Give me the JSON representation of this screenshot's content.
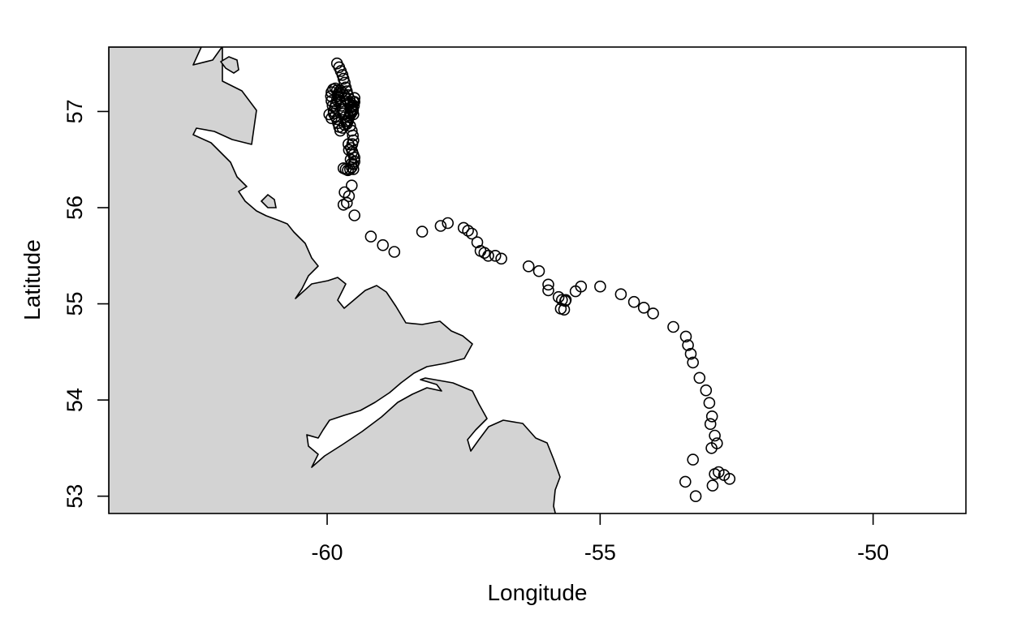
{
  "chart_data": {
    "type": "scatter",
    "title": "",
    "xlabel": "Longitude",
    "ylabel": "Latitude",
    "xlim": [
      -64,
      -48.3
    ],
    "ylim": [
      52.82,
      57.67
    ],
    "x_ticks": [
      -60,
      -55,
      -50
    ],
    "y_ticks": [
      53,
      54,
      55,
      56,
      57
    ],
    "grid": false,
    "legend": "none",
    "land_color": "#d3d3d3",
    "point_style": "open-circle",
    "points": [
      [
        -59.82,
        57.5
      ],
      [
        -59.78,
        57.46
      ],
      [
        -59.75,
        57.42
      ],
      [
        -59.72,
        57.38
      ],
      [
        -59.7,
        57.34
      ],
      [
        -59.68,
        57.3
      ],
      [
        -59.66,
        57.25
      ],
      [
        -59.64,
        57.21
      ],
      [
        -59.62,
        57.17
      ],
      [
        -59.59,
        57.13
      ],
      [
        -59.57,
        57.09
      ],
      [
        -59.55,
        57.05
      ],
      [
        -59.53,
        57.01
      ],
      [
        -59.52,
        56.97
      ],
      [
        -59.54,
        57.0
      ],
      [
        -59.57,
        57.04
      ],
      [
        -59.61,
        57.09
      ],
      [
        -59.65,
        57.13
      ],
      [
        -59.69,
        57.17
      ],
      [
        -59.73,
        57.2
      ],
      [
        -59.76,
        57.22
      ],
      [
        -59.78,
        57.2
      ],
      [
        -59.8,
        57.16
      ],
      [
        -59.82,
        57.12
      ],
      [
        -59.84,
        57.08
      ],
      [
        -59.86,
        57.04
      ],
      [
        -59.88,
        57.0
      ],
      [
        -59.9,
        57.06
      ],
      [
        -59.92,
        57.11
      ],
      [
        -59.93,
        57.16
      ],
      [
        -59.92,
        57.2
      ],
      [
        -59.89,
        57.23
      ],
      [
        -59.85,
        57.24
      ],
      [
        -59.82,
        57.22
      ],
      [
        -59.8,
        57.18
      ],
      [
        -59.78,
        57.14
      ],
      [
        -59.76,
        57.1
      ],
      [
        -59.74,
        57.06
      ],
      [
        -59.72,
        57.02
      ],
      [
        -59.7,
        56.98
      ],
      [
        -59.68,
        56.94
      ],
      [
        -59.66,
        56.9
      ],
      [
        -59.64,
        56.87
      ],
      [
        -59.62,
        56.9
      ],
      [
        -59.6,
        56.94
      ],
      [
        -59.58,
        56.98
      ],
      [
        -59.56,
        57.02
      ],
      [
        -59.54,
        57.06
      ],
      [
        -59.52,
        57.1
      ],
      [
        -59.5,
        57.14
      ],
      [
        -59.5,
        57.1
      ],
      [
        -59.51,
        57.06
      ],
      [
        -59.53,
        57.02
      ],
      [
        -59.56,
        56.98
      ],
      [
        -59.6,
        56.94
      ],
      [
        -59.64,
        56.9
      ],
      [
        -59.68,
        56.86
      ],
      [
        -59.72,
        56.83
      ],
      [
        -59.76,
        56.8
      ],
      [
        -59.78,
        56.84
      ],
      [
        -59.8,
        56.88
      ],
      [
        -59.82,
        56.92
      ],
      [
        -59.85,
        56.95
      ],
      [
        -59.88,
        56.98
      ],
      [
        -59.96,
        56.97
      ],
      [
        -59.92,
        56.93
      ],
      [
        -59.58,
        56.85
      ],
      [
        -59.55,
        56.8
      ],
      [
        -59.53,
        56.75
      ],
      [
        -59.52,
        56.7
      ],
      [
        -59.54,
        56.66
      ],
      [
        -59.56,
        56.62
      ],
      [
        -59.54,
        56.58
      ],
      [
        -59.52,
        56.55
      ],
      [
        -59.5,
        56.52
      ],
      [
        -59.5,
        56.48
      ],
      [
        -59.52,
        56.45
      ],
      [
        -59.55,
        56.42
      ],
      [
        -59.58,
        56.4
      ],
      [
        -59.62,
        56.39
      ],
      [
        -59.66,
        56.4
      ],
      [
        -59.7,
        56.41
      ],
      [
        -59.61,
        56.66
      ],
      [
        -59.6,
        56.6
      ],
      [
        -59.57,
        56.5
      ],
      [
        -59.55,
        56.46
      ],
      [
        -59.52,
        56.4
      ],
      [
        -59.55,
        56.23
      ],
      [
        -59.68,
        56.16
      ],
      [
        -59.6,
        56.12
      ],
      [
        -59.7,
        56.03
      ],
      [
        -59.64,
        56.05
      ],
      [
        -59.5,
        55.92
      ],
      [
        -59.2,
        55.7
      ],
      [
        -58.98,
        55.61
      ],
      [
        -58.77,
        55.54
      ],
      [
        -58.26,
        55.75
      ],
      [
        -57.92,
        55.81
      ],
      [
        -57.79,
        55.84
      ],
      [
        -57.5,
        55.79
      ],
      [
        -57.42,
        55.76
      ],
      [
        -57.35,
        55.73
      ],
      [
        -57.25,
        55.64
      ],
      [
        -57.19,
        55.55
      ],
      [
        -57.12,
        55.53
      ],
      [
        -57.05,
        55.5
      ],
      [
        -56.92,
        55.5
      ],
      [
        -56.81,
        55.47
      ],
      [
        -56.31,
        55.39
      ],
      [
        -56.12,
        55.34
      ],
      [
        -55.95,
        55.2
      ],
      [
        -55.95,
        55.14
      ],
      [
        -55.76,
        55.07
      ],
      [
        -55.7,
        55.04
      ],
      [
        -55.64,
        55.03
      ],
      [
        -55.72,
        54.95
      ],
      [
        -55.66,
        54.94
      ],
      [
        -55.63,
        55.04
      ],
      [
        -55.45,
        55.13
      ],
      [
        -55.35,
        55.18
      ],
      [
        -55.0,
        55.18
      ],
      [
        -54.62,
        55.1
      ],
      [
        -54.38,
        55.02
      ],
      [
        -54.2,
        54.96
      ],
      [
        -54.03,
        54.9
      ],
      [
        -53.66,
        54.76
      ],
      [
        -53.43,
        54.66
      ],
      [
        -53.39,
        54.57
      ],
      [
        -53.34,
        54.48
      ],
      [
        -53.3,
        54.39
      ],
      [
        -53.18,
        54.23
      ],
      [
        -53.06,
        54.1
      ],
      [
        -53.0,
        53.97
      ],
      [
        -52.95,
        53.83
      ],
      [
        -52.98,
        53.75
      ],
      [
        -52.9,
        53.63
      ],
      [
        -52.86,
        53.55
      ],
      [
        -52.96,
        53.5
      ],
      [
        -52.9,
        53.23
      ],
      [
        -52.83,
        53.25
      ],
      [
        -52.73,
        53.22
      ],
      [
        -52.63,
        53.18
      ],
      [
        -52.94,
        53.11
      ],
      [
        -53.3,
        53.38
      ],
      [
        -53.44,
        53.15
      ],
      [
        -53.25,
        53.0
      ]
    ],
    "x_tick_labels": [
      "-60",
      "-55",
      "-50"
    ],
    "y_tick_labels": [
      "53",
      "54",
      "55",
      "56",
      "57"
    ]
  }
}
